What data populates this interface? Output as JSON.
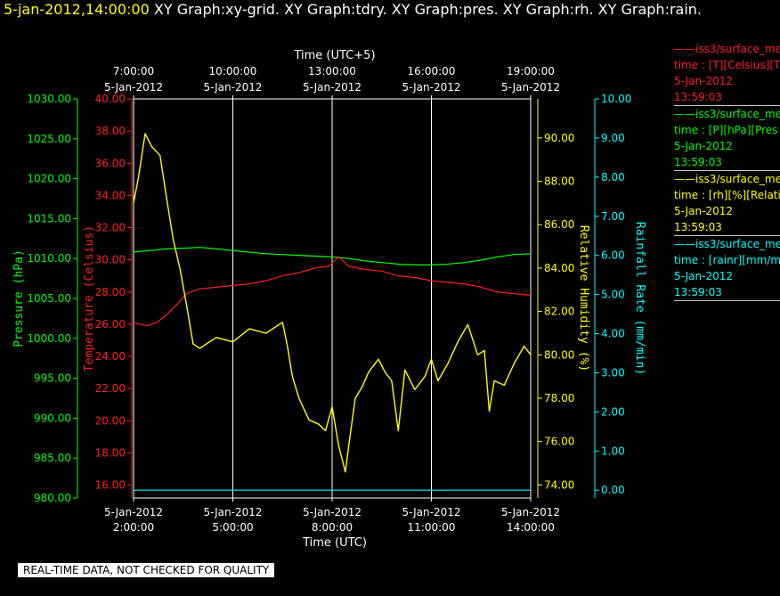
{
  "header": {
    "date": "5-jan-2012,14:00:00",
    "graphs": " XY Graph:xy-grid.  XY Graph:tdry.  XY Graph:pres.  XY Graph:rh.  XY Graph:rain."
  },
  "footer_note": "REAL-TIME DATA, NOT CHECKED FOR QUALITY",
  "legend": [
    {
      "name": "iss3/surface_me",
      "line2": "time : [T][Celsius][T",
      "date": "5-Jan-2012",
      "time": "13:59:03",
      "color": "#ff2020"
    },
    {
      "name": "iss3/surface_me",
      "line2": "time : [P][hPa][Pres",
      "date": "5-Jan-2012",
      "time": "13:59:03",
      "color": "#00ff00"
    },
    {
      "name": "iss3/surface_me",
      "line2": "time : [rh][%][Relati",
      "date": "5-Jan-2012",
      "time": "13:59:03",
      "color": "#ffff00"
    },
    {
      "name": "iss3/surface_me",
      "line2": "time : [rainr][mm/mi",
      "date": "5-Jan-2012",
      "time": "13:59:03",
      "color": "#00ffff"
    }
  ],
  "chart_data": {
    "type": "line",
    "x_bottom_label": "Time (UTC)",
    "x_top_label": "Time (UTC+5)",
    "x_range_utc_hours": [
      2,
      14
    ],
    "x_bottom_ticks": [
      {
        "h": 2,
        "date": "5-Jan-2012",
        "time": "2:00:00"
      },
      {
        "h": 5,
        "date": "5-Jan-2012",
        "time": "5:00:00"
      },
      {
        "h": 8,
        "date": "5-Jan-2012",
        "time": "8:00:00"
      },
      {
        "h": 11,
        "date": "5-Jan-2012",
        "time": "11:00:00"
      },
      {
        "h": 14,
        "date": "5-Jan-2012",
        "time": "14:00:00"
      }
    ],
    "x_top_ticks": [
      {
        "h": 2,
        "time": "7:00:00",
        "date": "5-Jan-2012"
      },
      {
        "h": 5,
        "time": "10:00:00",
        "date": "5-Jan-2012"
      },
      {
        "h": 8,
        "time": "13:00:00",
        "date": "5-Jan-2012"
      },
      {
        "h": 11,
        "time": "16:00:00",
        "date": "5-Jan-2012"
      },
      {
        "h": 14,
        "time": "19:00:00",
        "date": "5-Jan-2012"
      }
    ],
    "grid": true,
    "axes": {
      "pressure": {
        "label": "Pressure (hPa)",
        "range": [
          980,
          1030
        ],
        "ticks": [
          "980.00",
          "985.00",
          "990.00",
          "995.00",
          "1000.00",
          "1005.00",
          "1010.00",
          "1015.00",
          "1020.00",
          "1025.00",
          "1030.00"
        ],
        "color": "#00ff00"
      },
      "temperature": {
        "label": "Temperature (Celsius)",
        "range": [
          15.2,
          40
        ],
        "ticks": [
          "16.00",
          "18.00",
          "20.00",
          "22.00",
          "24.00",
          "26.00",
          "28.00",
          "30.00",
          "32.00",
          "34.00",
          "36.00",
          "38.00",
          "40.00"
        ],
        "color": "#ff2020"
      },
      "rh": {
        "label": "Relative Humidity (%)",
        "range": [
          73.4,
          91.8
        ],
        "ticks": [
          "74.00",
          "76.00",
          "78.00",
          "80.00",
          "82.00",
          "84.00",
          "86.00",
          "88.00",
          "90.00"
        ],
        "color": "#ffff00"
      },
      "rain": {
        "label": "Rainfall Rate (mm/min)",
        "range": [
          -0.2,
          10
        ],
        "ticks": [
          "0.00",
          "1.00",
          "2.00",
          "3.00",
          "4.00",
          "5.00",
          "6.00",
          "7.00",
          "8.00",
          "9.00",
          "10.00"
        ],
        "color": "#00ffff"
      }
    },
    "series": [
      {
        "name": "iss3/surface_me time : [P][hPa][Pres",
        "axis": "pressure",
        "color": "#00ff00",
        "points": [
          [
            2.0,
            1010.8
          ],
          [
            2.5,
            1011.0
          ],
          [
            3.0,
            1011.2
          ],
          [
            3.5,
            1011.3
          ],
          [
            4.0,
            1011.4
          ],
          [
            4.5,
            1011.2
          ],
          [
            5.0,
            1011.0
          ],
          [
            5.5,
            1010.8
          ],
          [
            6.0,
            1010.6
          ],
          [
            6.5,
            1010.5
          ],
          [
            7.0,
            1010.4
          ],
          [
            7.5,
            1010.3
          ],
          [
            8.0,
            1010.2
          ],
          [
            8.5,
            1010.0
          ],
          [
            9.0,
            1009.7
          ],
          [
            9.5,
            1009.5
          ],
          [
            10.0,
            1009.3
          ],
          [
            10.5,
            1009.2
          ],
          [
            11.0,
            1009.2
          ],
          [
            11.5,
            1009.3
          ],
          [
            12.0,
            1009.5
          ],
          [
            12.5,
            1009.8
          ],
          [
            13.0,
            1010.2
          ],
          [
            13.5,
            1010.5
          ],
          [
            14.0,
            1010.6
          ]
        ]
      },
      {
        "name": "iss3/surface_me time : [T][Celsius][T",
        "axis": "temperature",
        "color": "#ff2020",
        "points": [
          [
            2.0,
            26.1
          ],
          [
            2.4,
            25.9
          ],
          [
            2.7,
            26.1
          ],
          [
            3.0,
            26.6
          ],
          [
            3.3,
            27.2
          ],
          [
            3.6,
            27.9
          ],
          [
            4.0,
            28.2
          ],
          [
            4.5,
            28.3
          ],
          [
            5.0,
            28.4
          ],
          [
            5.5,
            28.5
          ],
          [
            6.0,
            28.7
          ],
          [
            6.5,
            29.0
          ],
          [
            7.0,
            29.2
          ],
          [
            7.5,
            29.5
          ],
          [
            7.9,
            29.6
          ],
          [
            8.2,
            30.2
          ],
          [
            8.5,
            29.6
          ],
          [
            9.0,
            29.4
          ],
          [
            9.5,
            29.3
          ],
          [
            10.0,
            29.0
          ],
          [
            10.5,
            28.9
          ],
          [
            11.0,
            28.7
          ],
          [
            11.5,
            28.6
          ],
          [
            12.0,
            28.5
          ],
          [
            12.5,
            28.3
          ],
          [
            13.0,
            28.0
          ],
          [
            13.5,
            27.9
          ],
          [
            14.0,
            27.8
          ]
        ]
      },
      {
        "name": "iss3/surface_me time : [rh][%][Relati",
        "axis": "rh",
        "color": "#ffff00",
        "points": [
          [
            2.0,
            87.0
          ],
          [
            2.15,
            88.2
          ],
          [
            2.35,
            90.2
          ],
          [
            2.55,
            89.6
          ],
          [
            2.8,
            89.2
          ],
          [
            3.0,
            87.2
          ],
          [
            3.2,
            85.3
          ],
          [
            3.4,
            84.0
          ],
          [
            3.6,
            82.3
          ],
          [
            3.8,
            80.5
          ],
          [
            4.0,
            80.3
          ],
          [
            4.5,
            80.8
          ],
          [
            5.0,
            80.6
          ],
          [
            5.5,
            81.2
          ],
          [
            6.0,
            81.0
          ],
          [
            6.5,
            81.5
          ],
          [
            6.65,
            80.4
          ],
          [
            6.8,
            79.0
          ],
          [
            7.0,
            78.0
          ],
          [
            7.3,
            77.0
          ],
          [
            7.6,
            76.8
          ],
          [
            7.8,
            76.5
          ],
          [
            8.0,
            77.6
          ],
          [
            8.2,
            75.8
          ],
          [
            8.4,
            74.6
          ],
          [
            8.5,
            75.8
          ],
          [
            8.7,
            78.0
          ],
          [
            8.9,
            78.5
          ],
          [
            9.1,
            79.2
          ],
          [
            9.4,
            79.8
          ],
          [
            9.6,
            79.2
          ],
          [
            9.8,
            78.8
          ],
          [
            10.0,
            76.5
          ],
          [
            10.2,
            79.3
          ],
          [
            10.5,
            78.4
          ],
          [
            10.8,
            79.0
          ],
          [
            11.0,
            79.8
          ],
          [
            11.2,
            78.8
          ],
          [
            11.5,
            79.6
          ],
          [
            11.8,
            80.6
          ],
          [
            12.1,
            81.4
          ],
          [
            12.4,
            80.0
          ],
          [
            12.6,
            80.2
          ],
          [
            12.75,
            77.4
          ],
          [
            12.9,
            78.8
          ],
          [
            13.2,
            78.6
          ],
          [
            13.5,
            79.6
          ],
          [
            13.8,
            80.4
          ],
          [
            14.0,
            80.0
          ]
        ]
      },
      {
        "name": "iss3/surface_me time : [rainr][mm/mi",
        "axis": "rain",
        "color": "#00ffff",
        "points": [
          [
            2.0,
            0.0
          ],
          [
            14.0,
            0.0
          ]
        ]
      }
    ]
  }
}
